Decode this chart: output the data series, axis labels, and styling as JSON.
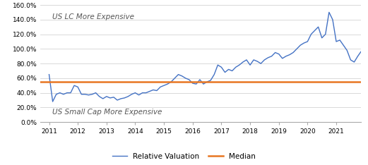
{
  "xlim": [
    2010.7,
    2021.85
  ],
  "xticks": [
    2011,
    2012,
    2013,
    2014,
    2015,
    2016,
    2017,
    2018,
    2019,
    2020,
    2021
  ],
  "ylim": [
    0.0,
    160.0
  ],
  "yticks": [
    0.0,
    20.0,
    40.0,
    60.0,
    80.0,
    100.0,
    120.0,
    140.0,
    160.0
  ],
  "ytick_labels": [
    "0.0%",
    "20.0%",
    "40.0%",
    "60.0%",
    "80.0%",
    "100.0%",
    "120.0%",
    "140.0%",
    "160.0%"
  ],
  "median_value": 55.0,
  "median_color": "#E87722",
  "line_color": "#4472C4",
  "annotation_above": "US LC More Expensive",
  "annotation_below": "US Small Cap More Expensive",
  "legend_labels": [
    "Relative Valuation",
    "Median"
  ],
  "background_color": "#ffffff",
  "grid_color": "#d3d3d3",
  "relative_valuation": [
    65,
    28,
    38,
    40,
    38,
    40,
    40,
    50,
    48,
    38,
    38,
    37,
    38,
    40,
    35,
    32,
    35,
    33,
    34,
    30,
    32,
    33,
    35,
    38,
    40,
    37,
    40,
    40,
    42,
    44,
    43,
    48,
    50,
    52,
    55,
    60,
    65,
    63,
    60,
    58,
    53,
    52,
    58,
    52,
    55,
    57,
    65,
    78,
    75,
    68,
    72,
    70,
    75,
    78,
    82,
    85,
    78,
    85,
    83,
    80,
    85,
    88,
    90,
    95,
    93,
    87,
    90,
    92,
    95,
    100,
    105,
    108,
    110,
    120,
    125,
    130,
    115,
    120,
    150,
    140,
    110,
    112,
    105,
    98,
    85,
    82,
    90,
    97,
    98
  ],
  "x_start": 2011.0,
  "x_step": 0.125
}
